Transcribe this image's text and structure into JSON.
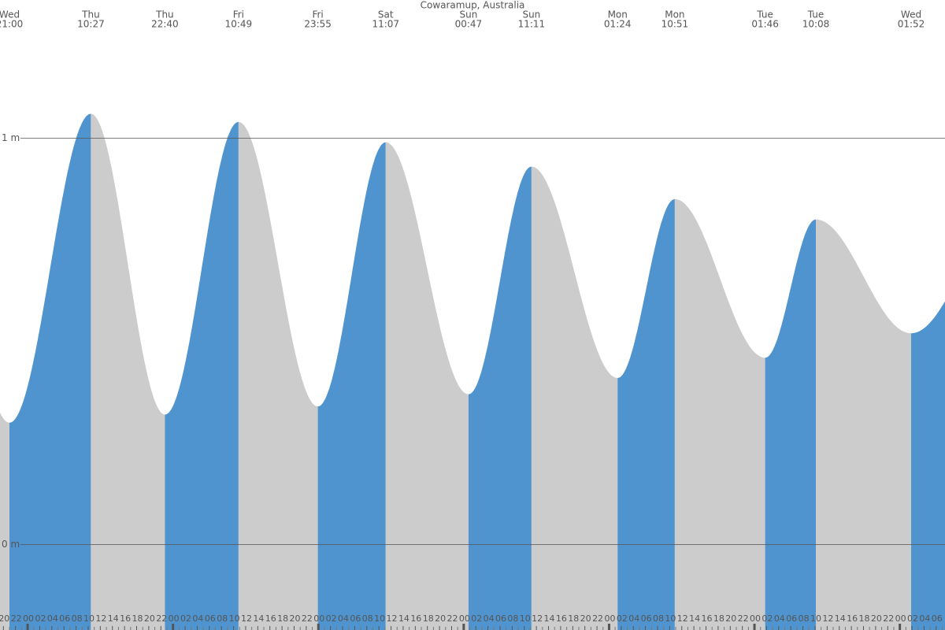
{
  "chart_data": {
    "type": "tide",
    "title": "Cowaramup, Australia",
    "extremes": {
      "day": [
        "Wed",
        "Thu",
        "Thu",
        "Fri",
        "Fri",
        "Sat",
        "Sun",
        "Sun",
        "Mon",
        "Mon",
        "Tue",
        "Tue",
        "Wed"
      ],
      "time": [
        "21:00",
        "10:27",
        "22:40",
        "10:49",
        "23:55",
        "11:07",
        "00:47",
        "11:11",
        "01:24",
        "10:51",
        "01:46",
        "10:08",
        "01:52"
      ],
      "values": [
        0.3,
        1.06,
        0.32,
        1.04,
        0.34,
        0.99,
        0.37,
        0.93,
        0.41,
        0.85,
        0.46,
        0.8,
        0.52
      ]
    },
    "rising_color": "#4f94cf",
    "falling_color": "#cccccc",
    "ylim": [
      -0.21,
      1.34
    ],
    "yticks": [
      {
        "value": 0,
        "label": "0 m"
      },
      {
        "value": 1,
        "label": "1 m"
      }
    ],
    "xticks": [
      "20",
      "22",
      "00",
      "02",
      "04",
      "06",
      "08",
      "10",
      "12",
      "14",
      "16",
      "18",
      "20",
      "22",
      "00",
      "02",
      "04",
      "06",
      "08",
      "10",
      "12",
      "14",
      "16",
      "18",
      "20",
      "22",
      "00",
      "02",
      "04",
      "06",
      "08",
      "10",
      "12",
      "14",
      "16",
      "18",
      "20",
      "22",
      "00",
      "02",
      "04",
      "06",
      "08",
      "10",
      "12",
      "14",
      "16",
      "18",
      "20",
      "22",
      "00",
      "02",
      "04",
      "06",
      "08",
      "10",
      "12",
      "14",
      "16",
      "18",
      "20",
      "22",
      "00",
      "02",
      "04",
      "06",
      "08",
      "10",
      "12",
      "14",
      "16",
      "18",
      "20",
      "22",
      "00",
      "02",
      "04",
      "06"
    ]
  }
}
